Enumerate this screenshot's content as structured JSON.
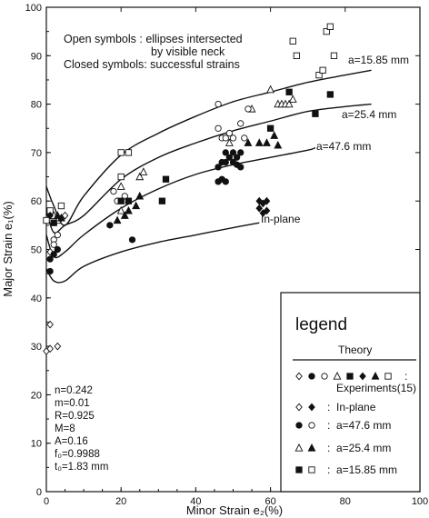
{
  "chart_data": {
    "type": "scatter",
    "title": "",
    "xlabel": "Minor Strain e₂(%)",
    "ylabel": "Major Strain e₁(%)",
    "xlim": [
      0,
      100
    ],
    "ylim": [
      0,
      100
    ],
    "x_ticks": [
      "0",
      "20",
      "40",
      "60",
      "80",
      "100"
    ],
    "y_ticks": [
      "0",
      "10",
      "20",
      "30",
      "40",
      "50",
      "60",
      "70",
      "80",
      "90",
      "100"
    ],
    "grid": false,
    "annotations": {
      "note_line1": "Open symbols : ellipses intersected",
      "note_line2": "by visible neck",
      "note_line3": "Closed symbols: successful strains"
    },
    "parameters": [
      "n=0.242",
      "m=0.01",
      "R=0.925",
      "M=8",
      "A=0.16",
      "f₀=0.9988",
      "t₀=1.83 mm"
    ],
    "legend": {
      "title": "legend",
      "theory_label": "Theory",
      "experiments_label": "Experiments(15)",
      "inplane_label": "In-plane",
      "a47_label": "a=47.6 mm",
      "a25_label": "a=25.4 mm",
      "a15_label": "a=15.85 mm",
      "placement": "bottom-right"
    },
    "series": [
      {
        "name": "a=15.85 mm",
        "kind": "theory",
        "x": [
          0,
          2,
          5,
          10,
          20,
          30,
          40,
          50,
          60,
          70,
          80,
          87
        ],
        "y": [
          63,
          59,
          55,
          61,
          69.5,
          74,
          77.5,
          80.5,
          82.5,
          84.5,
          86,
          87
        ]
      },
      {
        "name": "a=25.4 mm",
        "kind": "theory",
        "x": [
          0,
          2,
          5,
          10,
          20,
          30,
          40,
          50,
          60,
          70,
          80,
          87
        ],
        "y": [
          58,
          53.5,
          55,
          57,
          64.5,
          69,
          72,
          74.5,
          76.5,
          78.5,
          79.5,
          80
        ]
      },
      {
        "name": "a=47.6 mm",
        "kind": "theory",
        "x": [
          0,
          2,
          5,
          10,
          20,
          30,
          40,
          50,
          60,
          70,
          72
        ],
        "y": [
          53,
          48.5,
          49.5,
          53,
          58.5,
          62.5,
          65.5,
          67.5,
          69,
          70.5,
          71
        ]
      },
      {
        "name": "In-plane",
        "kind": "theory",
        "x": [
          0,
          2,
          5,
          10,
          20,
          30,
          40,
          50,
          57
        ],
        "y": [
          46,
          43.5,
          43.5,
          46.5,
          49.5,
          51.5,
          53,
          54.5,
          55.5
        ]
      },
      {
        "name": "Experiments open",
        "kind": "open",
        "points": [
          [
            0,
            29,
            "diamond"
          ],
          [
            1,
            29.5,
            "diamond"
          ],
          [
            3,
            30,
            "diamond"
          ],
          [
            1,
            34.5,
            "diamond"
          ],
          [
            1,
            49.5,
            "diamond"
          ],
          [
            2,
            52,
            "circle"
          ],
          [
            3,
            53,
            "circle"
          ],
          [
            2,
            51,
            "circle"
          ],
          [
            0,
            56,
            "square"
          ],
          [
            1,
            58,
            "square"
          ],
          [
            2,
            57,
            "triangle"
          ],
          [
            3,
            56,
            "triangle"
          ],
          [
            4,
            59,
            "square"
          ],
          [
            5,
            57,
            "diamond"
          ],
          [
            4,
            56.5,
            "diamond"
          ],
          [
            18,
            62,
            "circle"
          ],
          [
            19,
            60,
            "circle"
          ],
          [
            20,
            58,
            "triangle"
          ],
          [
            20,
            63,
            "triangle"
          ],
          [
            20,
            65,
            "square"
          ],
          [
            20,
            70,
            "square"
          ],
          [
            22,
            70,
            "square"
          ],
          [
            25,
            65,
            "triangle"
          ],
          [
            26,
            66,
            "triangle"
          ],
          [
            21,
            61,
            "circle"
          ],
          [
            46,
            80,
            "circle"
          ],
          [
            47,
            73,
            "circle"
          ],
          [
            48,
            73,
            "circle"
          ],
          [
            49,
            72,
            "triangle"
          ],
          [
            50,
            73,
            "circle"
          ],
          [
            52,
            76,
            "circle"
          ],
          [
            53,
            73,
            "circle"
          ],
          [
            55,
            79,
            "triangle"
          ],
          [
            54,
            79,
            "circle"
          ],
          [
            60,
            83,
            "triangle"
          ],
          [
            62,
            80,
            "triangle"
          ],
          [
            63,
            80,
            "triangle"
          ],
          [
            64,
            80,
            "triangle"
          ],
          [
            65,
            80,
            "triangle"
          ],
          [
            66,
            81,
            "triangle"
          ],
          [
            66,
            93,
            "square"
          ],
          [
            67,
            90,
            "square"
          ],
          [
            73,
            86,
            "square"
          ],
          [
            74,
            87,
            "square"
          ],
          [
            75,
            95,
            "square"
          ],
          [
            76,
            96,
            "square"
          ],
          [
            77,
            90,
            "square"
          ],
          [
            46,
            75,
            "circle"
          ],
          [
            49,
            74,
            "circle"
          ]
        ]
      },
      {
        "name": "Experiments closed",
        "kind": "closed",
        "points": [
          [
            1,
            45.5,
            "circle"
          ],
          [
            1,
            48,
            "circle"
          ],
          [
            2,
            49,
            "circle"
          ],
          [
            3,
            50,
            "circle"
          ],
          [
            2,
            55.5,
            "square"
          ],
          [
            1,
            57,
            "diamond"
          ],
          [
            3,
            57,
            "triangle"
          ],
          [
            4,
            56.5,
            "triangle"
          ],
          [
            17,
            55,
            "circle"
          ],
          [
            19,
            56,
            "triangle"
          ],
          [
            21,
            57,
            "triangle"
          ],
          [
            22,
            58,
            "triangle"
          ],
          [
            23,
            52,
            "circle"
          ],
          [
            20,
            60,
            "square"
          ],
          [
            22,
            60,
            "square"
          ],
          [
            24,
            59,
            "triangle"
          ],
          [
            25,
            61,
            "triangle"
          ],
          [
            31,
            60,
            "square"
          ],
          [
            32,
            64.5,
            "square"
          ],
          [
            46,
            64,
            "circle"
          ],
          [
            47,
            64.5,
            "circle"
          ],
          [
            48,
            64,
            "circle"
          ],
          [
            46,
            67,
            "circle"
          ],
          [
            47,
            68,
            "circle"
          ],
          [
            48,
            68,
            "circle"
          ],
          [
            49,
            69,
            "circle"
          ],
          [
            50,
            70,
            "circle"
          ],
          [
            51,
            69,
            "circle"
          ],
          [
            50,
            68,
            "circle"
          ],
          [
            51,
            67.5,
            "circle"
          ],
          [
            52,
            67,
            "circle"
          ],
          [
            48,
            70,
            "circle"
          ],
          [
            52,
            70,
            "circle"
          ],
          [
            54,
            72,
            "triangle"
          ],
          [
            57,
            72,
            "triangle"
          ],
          [
            59,
            72,
            "triangle"
          ],
          [
            61,
            73.5,
            "triangle"
          ],
          [
            62,
            71.5,
            "triangle"
          ],
          [
            60,
            75,
            "square"
          ],
          [
            65,
            82.5,
            "square"
          ],
          [
            72,
            78,
            "square"
          ],
          [
            76,
            82,
            "square"
          ],
          [
            57,
            58.5,
            "diamond"
          ],
          [
            58,
            59.5,
            "diamond"
          ],
          [
            57,
            60,
            "diamond"
          ],
          [
            59,
            58,
            "diamond"
          ],
          [
            58,
            57.5,
            "diamond"
          ],
          [
            59,
            60,
            "diamond"
          ]
        ]
      }
    ]
  }
}
